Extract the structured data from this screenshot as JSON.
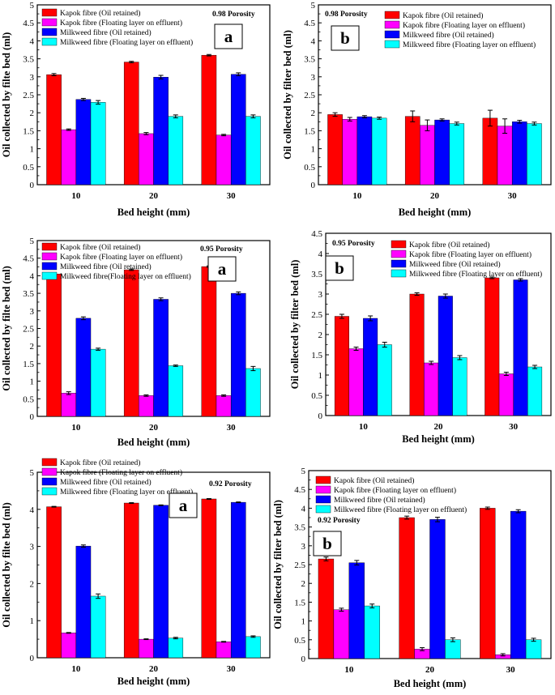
{
  "figure": {
    "accent_colors": {
      "kapok_oil": "#ff0000",
      "kapok_float": "#ff00ff",
      "milkweed_oil": "#0000ff",
      "milkweed_float": "#00ffff"
    }
  },
  "chart_data": [
    {
      "type": "bar",
      "panel": "a",
      "porosity_label": "0.98 Porosity",
      "xlabel": "Bed height (mm)",
      "ylabel": "Oil collected by filte bed (ml)",
      "categories": [
        "10",
        "20",
        "30"
      ],
      "ylim": [
        0,
        5
      ],
      "yticks": [
        "0",
        "0.5",
        "1",
        "1.5",
        "2",
        "2.5",
        "3",
        "3.5",
        "4",
        "4.5",
        "5"
      ],
      "legend_position": "top-left",
      "series": [
        {
          "name": "Kapok fibre (Oil retained)",
          "color": "#ff0000",
          "values": [
            3.06,
            3.41,
            3.6
          ],
          "errors": [
            0.03,
            0.02,
            0.02
          ]
        },
        {
          "name": "Kapok fibre (Floating layer on effluent)",
          "color": "#ff00ff",
          "values": [
            1.53,
            1.42,
            1.38
          ],
          "errors": [
            0.02,
            0.03,
            0.02
          ]
        },
        {
          "name": "Milkweed fibre (Oil retained)",
          "color": "#0000ff",
          "values": [
            2.37,
            2.99,
            3.07
          ],
          "errors": [
            0.03,
            0.05,
            0.04
          ]
        },
        {
          "name": "Milkweed fibre (Floating layer on effluent)",
          "color": "#00ffff",
          "values": [
            2.29,
            1.9,
            1.9
          ],
          "errors": [
            0.05,
            0.04,
            0.04
          ]
        }
      ]
    },
    {
      "type": "bar",
      "panel": "b",
      "porosity_label": "0.98 Porosity",
      "xlabel": "Bed height (mm)",
      "ylabel": "Oil collected by filter bed (ml)",
      "categories": [
        "10",
        "20",
        "30"
      ],
      "ylim": [
        0,
        5
      ],
      "yticks": [
        "0",
        "0.5",
        "1",
        "1.5",
        "2",
        "2.5",
        "3",
        "3.5",
        "4",
        "4.5",
        "5"
      ],
      "legend_position": "top-right",
      "series": [
        {
          "name": "Kapok  fibre (Oil retained)",
          "color": "#ff0000",
          "values": [
            1.95,
            1.9,
            1.85
          ],
          "errors": [
            0.05,
            0.15,
            0.22
          ]
        },
        {
          "name": "Kapok  fibre (Floating layer on effluent)",
          "color": "#ff00ff",
          "values": [
            1.82,
            1.65,
            1.63
          ],
          "errors": [
            0.05,
            0.15,
            0.2
          ]
        },
        {
          "name": "Milkweed  fibre (Oil retained)",
          "color": "#0000ff",
          "values": [
            1.89,
            1.8,
            1.75
          ],
          "errors": [
            0.03,
            0.03,
            0.04
          ]
        },
        {
          "name": "Milkweed  fibre (Floating layer on effluent)",
          "color": "#00ffff",
          "values": [
            1.85,
            1.7,
            1.7
          ],
          "errors": [
            0.03,
            0.04,
            0.04
          ]
        }
      ]
    },
    {
      "type": "bar",
      "panel": "a",
      "porosity_label": "0.95 Porosity",
      "xlabel": "Bed height (mm)",
      "ylabel": "Oil collected by filte bed (ml)",
      "categories": [
        "10",
        "20",
        "30"
      ],
      "ylim": [
        0,
        5
      ],
      "yticks": [
        "0",
        "0.5",
        "1",
        "1.5",
        "2",
        "2.5",
        "3",
        "3.5",
        "4",
        "4.5",
        "5"
      ],
      "legend_position": "top-left",
      "series": [
        {
          "name": "Kapok fibre (Oil retained)",
          "color": "#ff0000",
          "values": [
            4.05,
            4.17,
            4.26
          ],
          "errors": [
            0.02,
            0.02,
            0.02
          ]
        },
        {
          "name": "Kapok fibre (Floating layer on effluent)",
          "color": "#ff00ff",
          "values": [
            0.66,
            0.59,
            0.59
          ],
          "errors": [
            0.04,
            0.02,
            0.02
          ]
        },
        {
          "name": "Milkweed fibre (Oil retained)",
          "color": "#0000ff",
          "values": [
            2.79,
            3.33,
            3.5
          ],
          "errors": [
            0.04,
            0.04,
            0.04
          ]
        },
        {
          "name": "Milkweed fibre(Floating layer on effluent)",
          "color": "#00ffff",
          "values": [
            1.91,
            1.44,
            1.36
          ],
          "errors": [
            0.03,
            0.02,
            0.06
          ]
        }
      ]
    },
    {
      "type": "bar",
      "panel": "b",
      "porosity_label": "0.95 Porosity",
      "xlabel": "Bed height (mm)",
      "ylabel": "Oil collected by filter bed (ml)",
      "categories": [
        "10",
        "20",
        "30"
      ],
      "ylim": [
        0,
        4.5
      ],
      "yticks": [
        "0",
        "0.5",
        "1",
        "1.5",
        "2",
        "2.5",
        "3",
        "3.5",
        "4",
        "4.5"
      ],
      "legend_position": "top-right",
      "series": [
        {
          "name": "Kapok  fibre (Oil retained)",
          "color": "#ff0000",
          "values": [
            2.45,
            3.0,
            3.4
          ],
          "errors": [
            0.05,
            0.03,
            0.02
          ]
        },
        {
          "name": "Kapok  fibre (Floating layer on effluent)",
          "color": "#ff00ff",
          "values": [
            1.65,
            1.3,
            1.03
          ],
          "errors": [
            0.04,
            0.04,
            0.04
          ]
        },
        {
          "name": "Milkweed  fibre (Oil retained)",
          "color": "#0000ff",
          "values": [
            2.4,
            2.95,
            3.35
          ],
          "errors": [
            0.06,
            0.05,
            0.03
          ]
        },
        {
          "name": "Milkweed  fibre (Floating layer on effluent)",
          "color": "#00ffff",
          "values": [
            1.75,
            1.43,
            1.2
          ],
          "errors": [
            0.06,
            0.05,
            0.04
          ]
        }
      ]
    },
    {
      "type": "bar",
      "panel": "a",
      "porosity_label": "0.92 Porosity",
      "xlabel": "Bed height (mm)",
      "ylabel": "Oil collected by filte bed (ml)",
      "categories": [
        "10",
        "20",
        "30"
      ],
      "ylim": [
        0,
        5
      ],
      "yticks": [
        "0",
        "1",
        "2",
        "3",
        "4",
        "5"
      ],
      "legend_position": "top-left",
      "series": [
        {
          "name": "Kapok fibre (Oil retained)",
          "color": "#ff0000",
          "values": [
            4.07,
            4.17,
            4.28
          ],
          "errors": [
            0.01,
            0.01,
            0.01
          ]
        },
        {
          "name": "Kapok fibre (Floating layer on effluent)",
          "color": "#ff00ff",
          "values": [
            0.67,
            0.5,
            0.43
          ],
          "errors": [
            0.01,
            0.01,
            0.01
          ]
        },
        {
          "name": "Milkweed fibre (Oil retained)",
          "color": "#0000ff",
          "values": [
            3.01,
            4.11,
            4.19
          ],
          "errors": [
            0.03,
            0.01,
            0.01
          ]
        },
        {
          "name": "Milkweed fibre (Floating layer on effluent)",
          "color": "#00ffff",
          "values": [
            1.66,
            0.53,
            0.57
          ],
          "errors": [
            0.06,
            0.02,
            0.02
          ]
        }
      ]
    },
    {
      "type": "bar",
      "panel": "b",
      "porosity_label": "0.92 Porosity",
      "xlabel": "Bed height (mm)",
      "ylabel": "Oil collected by filter bed (ml)",
      "categories": [
        "10",
        "20",
        "30"
      ],
      "ylim": [
        0,
        5
      ],
      "yticks": [
        "0",
        "0.5",
        "1",
        "1.5",
        "2",
        "2.5",
        "3",
        "3.5",
        "4",
        "4.5",
        "5"
      ],
      "legend_position": "top-left",
      "series": [
        {
          "name": "Kapok  fibre (Oil retained)",
          "color": "#ff0000",
          "values": [
            2.65,
            3.75,
            4.0
          ],
          "errors": [
            0.05,
            0.04,
            0.03
          ]
        },
        {
          "name": "Kapok  fibre (Floating layer on effluent)",
          "color": "#ff00ff",
          "values": [
            1.3,
            0.25,
            0.1
          ],
          "errors": [
            0.04,
            0.04,
            0.03
          ]
        },
        {
          "name": "Milkweed  fibre (Oil retained)",
          "color": "#0000ff",
          "values": [
            2.55,
            3.7,
            3.92
          ],
          "errors": [
            0.06,
            0.06,
            0.04
          ]
        },
        {
          "name": "Milkweed  fibre (Floating layer on effluent)",
          "color": "#00ffff",
          "values": [
            1.4,
            0.5,
            0.5
          ],
          "errors": [
            0.05,
            0.05,
            0.04
          ]
        }
      ]
    }
  ]
}
